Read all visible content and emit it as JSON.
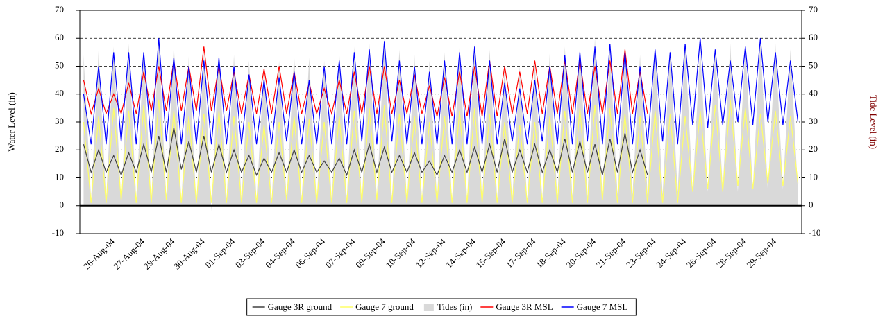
{
  "chart_data": {
    "type": "line",
    "y_label": "Water Level (in)",
    "y2_label": "Tide Level (in)",
    "categories": [
      null,
      null,
      null,
      null,
      "26-Aug-04",
      null,
      null,
      null,
      "27-Aug-04",
      null,
      null,
      null,
      "29-Aug-04",
      null,
      null,
      null,
      "30-Aug-04",
      null,
      null,
      null,
      "01-Sep-04",
      null,
      null,
      null,
      "03-Sep-04",
      null,
      null,
      null,
      "04-Sep-04",
      null,
      null,
      null,
      "06-Sep-04",
      null,
      null,
      null,
      "07-Sep-04",
      null,
      null,
      null,
      "09-Sep-04",
      null,
      null,
      null,
      "10-Sep-04",
      null,
      null,
      null,
      "12-Sep-04",
      null,
      null,
      null,
      "14-Sep-04",
      null,
      null,
      null,
      "15-Sep-04",
      null,
      null,
      null,
      "17-Sep-04",
      null,
      null,
      null,
      "18-Sep-04",
      null,
      null,
      null,
      "20-Sep-04",
      null,
      null,
      null,
      "21-Sep-04",
      null,
      null,
      null,
      "23-Sep-04",
      null,
      null,
      null,
      "24-Sep-04",
      null,
      null,
      null,
      "26-Sep-04",
      null,
      null,
      null,
      "28-Sep-04",
      null,
      null,
      null,
      "29-Sep-04",
      null,
      null,
      null
    ],
    "ylim": [
      -10,
      70
    ],
    "yticks": [
      -10,
      0,
      10,
      20,
      30,
      40,
      50,
      60,
      70
    ],
    "y2lim": [
      -10,
      70
    ],
    "y2ticks": [
      -10,
      0,
      10,
      20,
      30,
      40,
      50,
      60,
      70
    ],
    "grid": true,
    "legend": "bottom",
    "series": [
      {
        "name": "Tides (in)",
        "color": "#d9d9d9",
        "axis": "y2",
        "kind": "area",
        "values": [
          54,
          2,
          56,
          2,
          57,
          1,
          58,
          2,
          56,
          1,
          60,
          2,
          58,
          1,
          54,
          0,
          55,
          -2,
          56,
          1,
          54,
          2,
          52,
          2,
          50,
          1,
          52,
          2,
          54,
          2,
          53,
          1,
          52,
          2,
          55,
          2,
          57,
          1,
          58,
          2,
          60,
          2,
          56,
          1,
          54,
          2,
          52,
          2,
          55,
          1,
          57,
          2,
          58,
          2,
          56,
          2,
          50,
          2,
          50,
          1,
          52,
          2,
          55,
          2,
          57,
          3,
          58,
          3,
          60,
          3,
          56,
          4,
          55,
          4,
          54,
          4,
          57,
          4,
          56,
          5,
          58,
          5,
          57,
          5,
          56,
          6,
          58,
          5,
          57,
          6,
          60,
          5,
          58,
          6,
          56,
          5
        ]
      },
      {
        "name": "Gauge 7 ground",
        "color": "#ffff66",
        "kind": "line",
        "values": [
          30,
          1,
          32,
          1,
          35,
          2,
          34,
          1,
          36,
          1,
          38,
          2,
          34,
          1,
          32,
          1,
          33,
          1,
          34,
          1,
          32,
          1,
          30,
          1,
          29,
          1,
          30,
          2,
          32,
          1,
          31,
          1,
          30,
          1,
          32,
          1,
          34,
          1,
          35,
          2,
          36,
          1,
          33,
          1,
          32,
          1,
          30,
          1,
          32,
          1,
          34,
          1,
          35,
          1,
          33,
          1,
          30,
          1,
          29,
          1,
          30,
          1,
          32,
          1,
          34,
          1,
          35,
          1,
          36,
          2,
          35,
          1,
          33,
          1,
          32,
          1,
          34,
          1,
          33,
          1,
          32,
          5,
          34,
          6,
          36,
          5,
          38,
          7,
          35,
          6,
          33,
          8,
          34,
          7,
          32,
          8
        ]
      },
      {
        "name": "Gauge 3R ground",
        "color": "#404040",
        "kind": "line",
        "values": [
          22,
          12,
          20,
          12,
          18,
          11,
          19,
          12,
          22,
          12,
          25,
          12,
          28,
          13,
          23,
          12,
          25,
          12,
          22,
          12,
          20,
          12,
          18,
          11,
          17,
          12,
          19,
          12,
          20,
          12,
          18,
          12,
          16,
          12,
          17,
          11,
          20,
          12,
          22,
          12,
          21,
          12,
          18,
          12,
          19,
          12,
          16,
          11,
          18,
          12,
          20,
          12,
          21,
          12,
          22,
          12,
          24,
          12,
          20,
          12,
          22,
          12,
          20,
          12,
          24,
          12,
          23,
          12,
          22,
          11,
          24,
          12,
          26,
          12,
          20,
          11,
          null,
          null,
          null,
          null,
          null,
          null,
          null,
          null,
          null,
          null,
          null,
          null,
          null,
          null,
          null,
          null,
          null,
          null,
          null,
          null
        ]
      },
      {
        "name": "Gauge 3R MSL",
        "color": "#ff0000",
        "kind": "line",
        "values": [
          45,
          33,
          42,
          33,
          40,
          33,
          44,
          33,
          48,
          34,
          50,
          34,
          52,
          34,
          50,
          34,
          57,
          34,
          50,
          34,
          48,
          33,
          47,
          33,
          49,
          33,
          50,
          33,
          48,
          33,
          44,
          33,
          42,
          33,
          45,
          33,
          48,
          33,
          50,
          33,
          50,
          33,
          45,
          33,
          47,
          33,
          43,
          32,
          46,
          32,
          48,
          32,
          50,
          32,
          52,
          32,
          50,
          33,
          48,
          33,
          52,
          33,
          50,
          33,
          52,
          33,
          52,
          33,
          50,
          33,
          52,
          33,
          56,
          33,
          48,
          33,
          null,
          null,
          null,
          null,
          null,
          null,
          null,
          null,
          null,
          null,
          null,
          null,
          null,
          null,
          null,
          null,
          null,
          null,
          null,
          null
        ]
      },
      {
        "name": "Gauge 7 MSL",
        "color": "#0000ff",
        "kind": "line",
        "values": [
          40,
          22,
          50,
          22,
          55,
          23,
          55,
          22,
          55,
          22,
          60,
          23,
          53,
          22,
          50,
          22,
          52,
          22,
          53,
          22,
          50,
          22,
          47,
          22,
          45,
          22,
          46,
          23,
          48,
          22,
          45,
          22,
          50,
          22,
          52,
          22,
          55,
          23,
          56,
          22,
          59,
          23,
          52,
          22,
          50,
          22,
          48,
          22,
          52,
          22,
          55,
          22,
          57,
          22,
          52,
          22,
          44,
          23,
          42,
          22,
          45,
          23,
          50,
          22,
          54,
          22,
          55,
          23,
          57,
          22,
          58,
          22,
          55,
          22,
          50,
          22,
          56,
          23,
          55,
          22,
          58,
          29,
          60,
          28,
          56,
          29,
          52,
          30,
          57,
          29,
          60,
          30,
          55,
          29,
          52,
          30
        ]
      }
    ],
    "legend_order": [
      2,
      1,
      0,
      3,
      4
    ]
  }
}
